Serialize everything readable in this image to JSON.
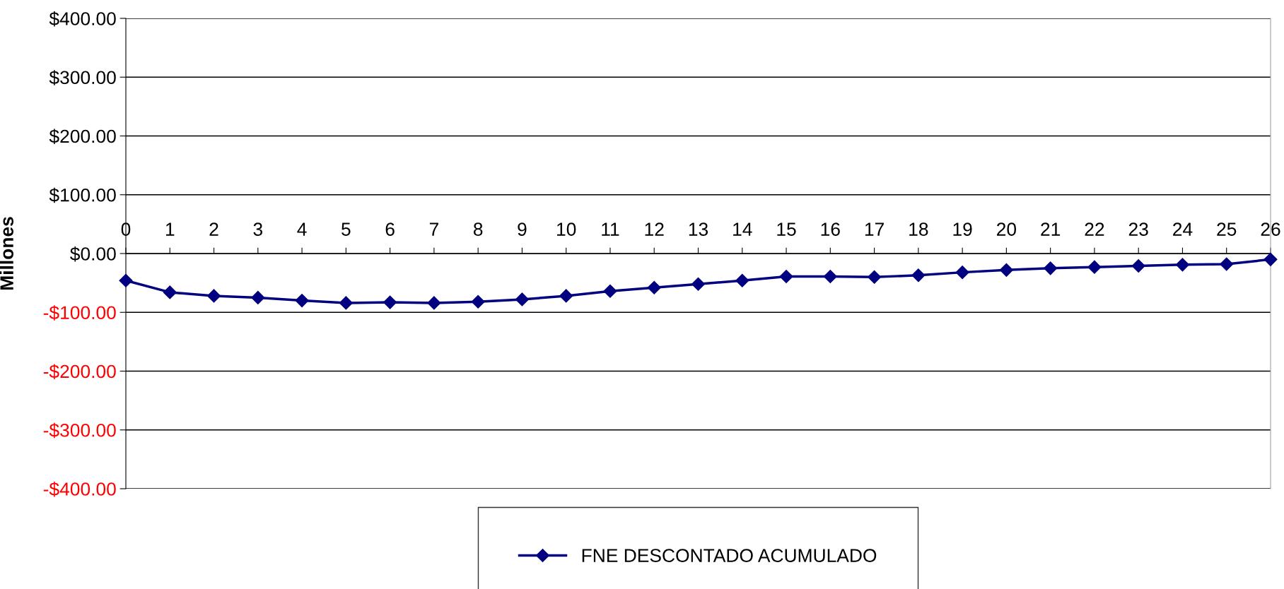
{
  "chart_data": {
    "type": "line",
    "ylabel": "Millones",
    "categories": [
      "0",
      "1",
      "2",
      "3",
      "4",
      "5",
      "6",
      "7",
      "8",
      "9",
      "10",
      "11",
      "12",
      "13",
      "14",
      "15",
      "16",
      "17",
      "18",
      "19",
      "20",
      "21",
      "22",
      "23",
      "24",
      "25",
      "26"
    ],
    "series": [
      {
        "name": "FNE DESCONTADO ACUMULADO",
        "color": "#000080",
        "values": [
          -46,
          -66,
          -72,
          -75,
          -80,
          -84,
          -83,
          -84,
          -82,
          -78,
          -72,
          -64,
          -58,
          -52,
          -46,
          -39,
          -39,
          -40,
          -37,
          -32,
          -28,
          -25,
          -23,
          -21,
          -19,
          -18,
          -10
        ]
      }
    ],
    "ylim": [
      -400,
      400
    ],
    "yticks": [
      {
        "value": -400,
        "label": "-$400.00"
      },
      {
        "value": -300,
        "label": "-$300.00"
      },
      {
        "value": -200,
        "label": "-$200.00"
      },
      {
        "value": -100,
        "label": "-$100.00"
      },
      {
        "value": 0,
        "label": "$0.00"
      },
      {
        "value": 100,
        "label": "$100.00"
      },
      {
        "value": 200,
        "label": "$200.00"
      },
      {
        "value": 300,
        "label": "$300.00"
      },
      {
        "value": 400,
        "label": "$400.00"
      }
    ],
    "grid": "y",
    "legend": "bottom",
    "marker": "diamond",
    "line_style": "solid"
  }
}
